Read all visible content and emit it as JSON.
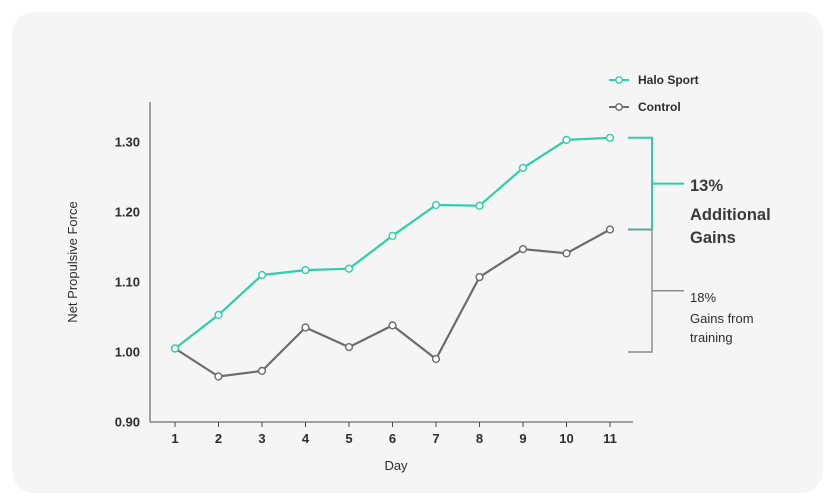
{
  "chart_data": {
    "type": "line",
    "title": "",
    "xlabel": "Day",
    "ylabel": "Net Propulsive Force",
    "x": [
      1,
      2,
      3,
      4,
      5,
      6,
      7,
      8,
      9,
      10,
      11
    ],
    "x_tick_labels": [
      "1",
      "2",
      "3",
      "4",
      "5",
      "6",
      "7",
      "8",
      "9",
      "10",
      "11"
    ],
    "y_ticks": [
      0.9,
      1.0,
      1.1,
      1.2,
      1.3
    ],
    "y_tick_labels": [
      "0.90",
      "1.00",
      "1.10",
      "1.20",
      "1.30"
    ],
    "ylim": [
      0.9,
      1.3
    ],
    "grid": false,
    "legend_position": "top-right",
    "series": [
      {
        "name": "Halo Sport",
        "color": "#2ecfa8",
        "values": [
          1.005,
          1.053,
          1.11,
          1.117,
          1.119,
          1.166,
          1.21,
          1.209,
          1.263,
          1.303,
          1.306
        ]
      },
      {
        "name": "Control",
        "color": "#6b6b6b",
        "values": [
          1.005,
          0.965,
          0.973,
          1.035,
          1.007,
          1.038,
          0.99,
          1.107,
          1.147,
          1.141,
          1.175
        ]
      }
    ],
    "annotations": [
      {
        "label_lines": [
          "13%",
          "Additional",
          "Gains"
        ],
        "range": [
          1.175,
          1.306
        ],
        "color": "#2ecfa8"
      },
      {
        "label_lines": [
          "18%",
          "Gains from",
          "training"
        ],
        "range": [
          1.0,
          1.175
        ],
        "color": "#8a8a8a"
      }
    ]
  }
}
